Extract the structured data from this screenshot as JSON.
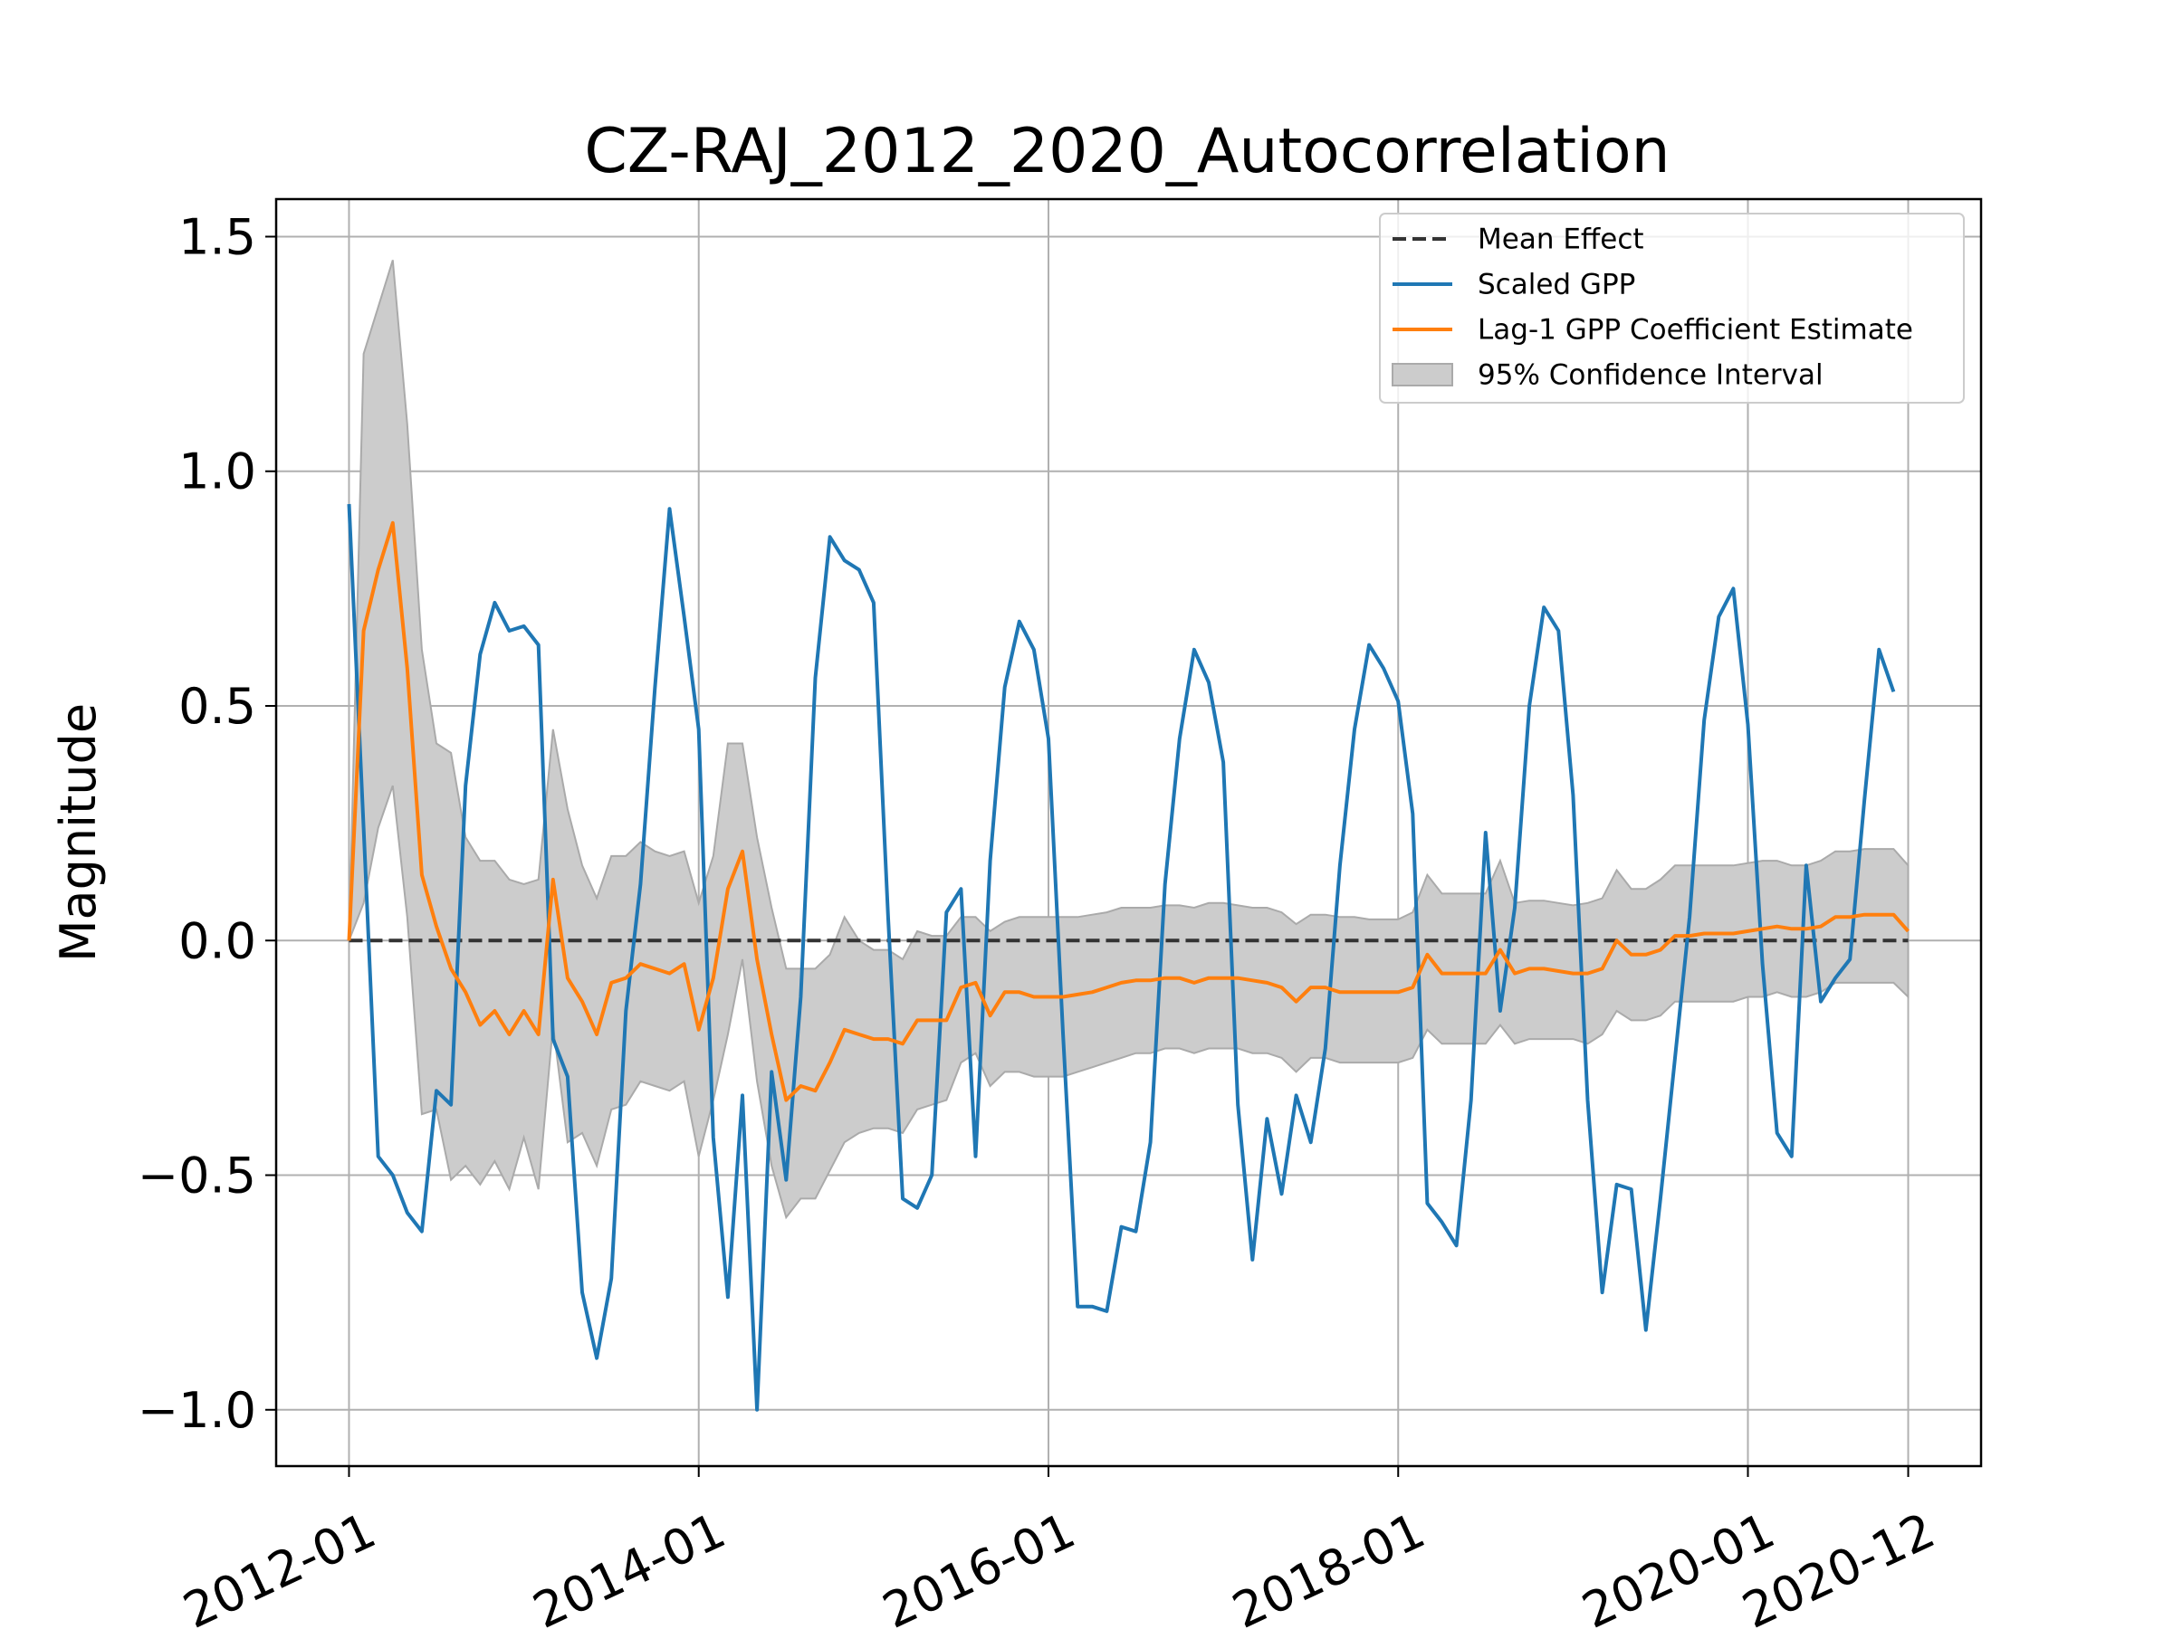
{
  "chart_data": {
    "type": "line",
    "title": "CZ-RAJ_2012_2020_Autocorrelation",
    "y_label": "Magnitude",
    "x": [
      "2012-01",
      "2012-02",
      "2012-03",
      "2012-04",
      "2012-05",
      "2012-06",
      "2012-07",
      "2012-08",
      "2012-09",
      "2012-10",
      "2012-11",
      "2012-12",
      "2013-01",
      "2013-02",
      "2013-03",
      "2013-04",
      "2013-05",
      "2013-06",
      "2013-07",
      "2013-08",
      "2013-09",
      "2013-10",
      "2013-11",
      "2013-12",
      "2014-01",
      "2014-02",
      "2014-03",
      "2014-04",
      "2014-05",
      "2014-06",
      "2014-07",
      "2014-08",
      "2014-09",
      "2014-10",
      "2014-11",
      "2014-12",
      "2015-01",
      "2015-02",
      "2015-03",
      "2015-04",
      "2015-05",
      "2015-06",
      "2015-07",
      "2015-08",
      "2015-09",
      "2015-10",
      "2015-11",
      "2015-12",
      "2016-01",
      "2016-02",
      "2016-03",
      "2016-04",
      "2016-05",
      "2016-06",
      "2016-07",
      "2016-08",
      "2016-09",
      "2016-10",
      "2016-11",
      "2016-12",
      "2017-01",
      "2017-02",
      "2017-03",
      "2017-04",
      "2017-05",
      "2017-06",
      "2017-07",
      "2017-08",
      "2017-09",
      "2017-10",
      "2017-11",
      "2017-12",
      "2018-01",
      "2018-02",
      "2018-03",
      "2018-04",
      "2018-05",
      "2018-06",
      "2018-07",
      "2018-08",
      "2018-09",
      "2018-10",
      "2018-11",
      "2018-12",
      "2019-01",
      "2019-02",
      "2019-03",
      "2019-04",
      "2019-05",
      "2019-06",
      "2019-07",
      "2019-08",
      "2019-09",
      "2019-10",
      "2019-11",
      "2019-12",
      "2020-01",
      "2020-02",
      "2020-03",
      "2020-04",
      "2020-05",
      "2020-06",
      "2020-07",
      "2020-08",
      "2020-09",
      "2020-10",
      "2020-11",
      "2020-12"
    ],
    "series": [
      {
        "name": "Mean Effect",
        "color": "#333333",
        "style": "dashed",
        "value": 0
      },
      {
        "name": "Scaled GPP",
        "color": "#1f77b4",
        "values": [
          0.93,
          0.24,
          -0.46,
          -0.5,
          -0.58,
          -0.62,
          -0.32,
          -0.35,
          0.33,
          0.61,
          0.72,
          0.66,
          0.67,
          0.63,
          -0.21,
          -0.29,
          -0.75,
          -0.89,
          -0.72,
          -0.15,
          0.12,
          0.54,
          0.92,
          0.69,
          0.45,
          -0.42,
          -0.76,
          -0.33,
          -1.0,
          -0.28,
          -0.51,
          -0.12,
          0.56,
          0.86,
          0.81,
          0.79,
          0.72,
          0.05,
          -0.55,
          -0.57,
          -0.5,
          0.06,
          0.11,
          -0.46,
          0.17,
          0.54,
          0.68,
          0.62,
          0.43,
          -0.2,
          -0.78,
          -0.78,
          -0.79,
          -0.61,
          -0.62,
          -0.43,
          0.12,
          0.43,
          0.62,
          0.55,
          0.38,
          -0.35,
          -0.68,
          -0.38,
          -0.54,
          -0.33,
          -0.43,
          -0.23,
          0.16,
          0.45,
          0.63,
          0.58,
          0.51,
          0.27,
          -0.56,
          -0.6,
          -0.65,
          -0.34,
          0.23,
          -0.15,
          0.07,
          0.5,
          0.71,
          0.66,
          0.31,
          -0.34,
          -0.75,
          -0.52,
          -0.53,
          -0.83,
          -0.55,
          -0.25,
          0.05,
          0.47,
          0.69,
          0.75,
          0.46,
          -0.05,
          -0.41,
          -0.46,
          0.16,
          -0.13,
          -0.08,
          -0.04,
          0.3,
          0.62,
          0.53,
          null
        ]
      },
      {
        "name": "Lag-1 GPP Coefficient Estimate",
        "color": "#ff7f0e",
        "values": [
          0.0,
          0.66,
          0.79,
          0.89,
          0.58,
          0.14,
          0.03,
          -0.06,
          -0.11,
          -0.18,
          -0.15,
          -0.2,
          -0.15,
          -0.2,
          0.13,
          -0.08,
          -0.13,
          -0.2,
          -0.09,
          -0.08,
          -0.05,
          -0.06,
          -0.07,
          -0.05,
          -0.19,
          -0.08,
          0.11,
          0.19,
          -0.04,
          -0.2,
          -0.34,
          -0.31,
          -0.32,
          -0.26,
          -0.19,
          -0.2,
          -0.21,
          -0.21,
          -0.22,
          -0.17,
          -0.17,
          -0.17,
          -0.1,
          -0.09,
          -0.16,
          -0.11,
          -0.11,
          -0.12,
          -0.12,
          -0.12,
          -0.115,
          -0.11,
          -0.1,
          -0.09,
          -0.085,
          -0.085,
          -0.08,
          -0.08,
          -0.09,
          -0.08,
          -0.08,
          -0.08,
          -0.085,
          -0.09,
          -0.1,
          -0.13,
          -0.1,
          -0.1,
          -0.11,
          -0.11,
          -0.11,
          -0.11,
          -0.11,
          -0.1,
          -0.03,
          -0.07,
          -0.07,
          -0.07,
          -0.07,
          -0.02,
          -0.07,
          -0.06,
          -0.06,
          -0.065,
          -0.07,
          -0.07,
          -0.06,
          0.0,
          -0.03,
          -0.03,
          -0.02,
          0.01,
          0.01,
          0.015,
          0.015,
          0.015,
          0.02,
          0.025,
          0.03,
          0.025,
          0.025,
          0.03,
          0.05,
          0.05,
          0.055,
          0.055,
          0.055,
          0.02
        ]
      },
      {
        "name": "95% Confidence Interval",
        "color": "#cccccc",
        "lower": [
          0.0,
          0.08,
          0.24,
          0.33,
          0.05,
          -0.37,
          -0.36,
          -0.51,
          -0.48,
          -0.52,
          -0.47,
          -0.53,
          -0.42,
          -0.53,
          -0.18,
          -0.43,
          -0.41,
          -0.48,
          -0.36,
          -0.35,
          -0.3,
          -0.31,
          -0.32,
          -0.3,
          -0.46,
          -0.34,
          -0.2,
          -0.04,
          -0.3,
          -0.48,
          -0.59,
          -0.55,
          -0.55,
          -0.49,
          -0.43,
          -0.41,
          -0.4,
          -0.4,
          -0.41,
          -0.36,
          -0.35,
          -0.34,
          -0.26,
          -0.24,
          -0.31,
          -0.28,
          -0.28,
          -0.29,
          -0.29,
          -0.29,
          -0.28,
          -0.27,
          -0.26,
          -0.25,
          -0.24,
          -0.24,
          -0.23,
          -0.23,
          -0.24,
          -0.23,
          -0.23,
          -0.23,
          -0.24,
          -0.24,
          -0.25,
          -0.28,
          -0.25,
          -0.25,
          -0.26,
          -0.26,
          -0.26,
          -0.26,
          -0.26,
          -0.25,
          -0.19,
          -0.22,
          -0.22,
          -0.22,
          -0.22,
          -0.18,
          -0.22,
          -0.21,
          -0.21,
          -0.21,
          -0.21,
          -0.22,
          -0.2,
          -0.15,
          -0.17,
          -0.17,
          -0.16,
          -0.13,
          -0.13,
          -0.13,
          -0.13,
          -0.13,
          -0.12,
          -0.12,
          -0.11,
          -0.12,
          -0.12,
          -0.11,
          -0.09,
          -0.09,
          -0.09,
          -0.09,
          -0.09,
          -0.12
        ],
        "upper": [
          0.0,
          1.25,
          1.35,
          1.45,
          1.1,
          0.62,
          0.42,
          0.4,
          0.22,
          0.17,
          0.17,
          0.13,
          0.12,
          0.13,
          0.45,
          0.28,
          0.16,
          0.09,
          0.18,
          0.18,
          0.21,
          0.19,
          0.18,
          0.19,
          0.08,
          0.18,
          0.42,
          0.42,
          0.22,
          0.07,
          -0.06,
          -0.06,
          -0.06,
          -0.03,
          0.05,
          0.0,
          -0.02,
          -0.02,
          -0.04,
          0.02,
          0.01,
          0.01,
          0.05,
          0.05,
          0.02,
          0.04,
          0.05,
          0.05,
          0.05,
          0.05,
          0.05,
          0.055,
          0.06,
          0.07,
          0.07,
          0.07,
          0.075,
          0.075,
          0.07,
          0.08,
          0.08,
          0.075,
          0.07,
          0.07,
          0.06,
          0.035,
          0.055,
          0.055,
          0.05,
          0.05,
          0.045,
          0.045,
          0.045,
          0.06,
          0.14,
          0.1,
          0.1,
          0.1,
          0.1,
          0.17,
          0.08,
          0.085,
          0.085,
          0.08,
          0.075,
          0.08,
          0.09,
          0.15,
          0.11,
          0.11,
          0.13,
          0.16,
          0.16,
          0.16,
          0.16,
          0.16,
          0.165,
          0.17,
          0.17,
          0.16,
          0.16,
          0.17,
          0.19,
          0.19,
          0.195,
          0.195,
          0.195,
          0.16
        ]
      }
    ],
    "xlim": [
      "2011-08",
      "2021-05"
    ],
    "xticks": [
      "2012-01",
      "2014-01",
      "2016-01",
      "2018-01",
      "2020-01",
      "2020-12"
    ],
    "ylim": [
      -1.12,
      1.58
    ],
    "yticks": [
      {
        "value": -1.0,
        "label": "−1.0"
      },
      {
        "value": -0.5,
        "label": "−0.5"
      },
      {
        "value": 0.0,
        "label": "0.0"
      },
      0.5,
      {
        "value": 1.0,
        "label": "1.0"
      },
      1.5
    ],
    "grid": true,
    "legend": "upper right"
  }
}
